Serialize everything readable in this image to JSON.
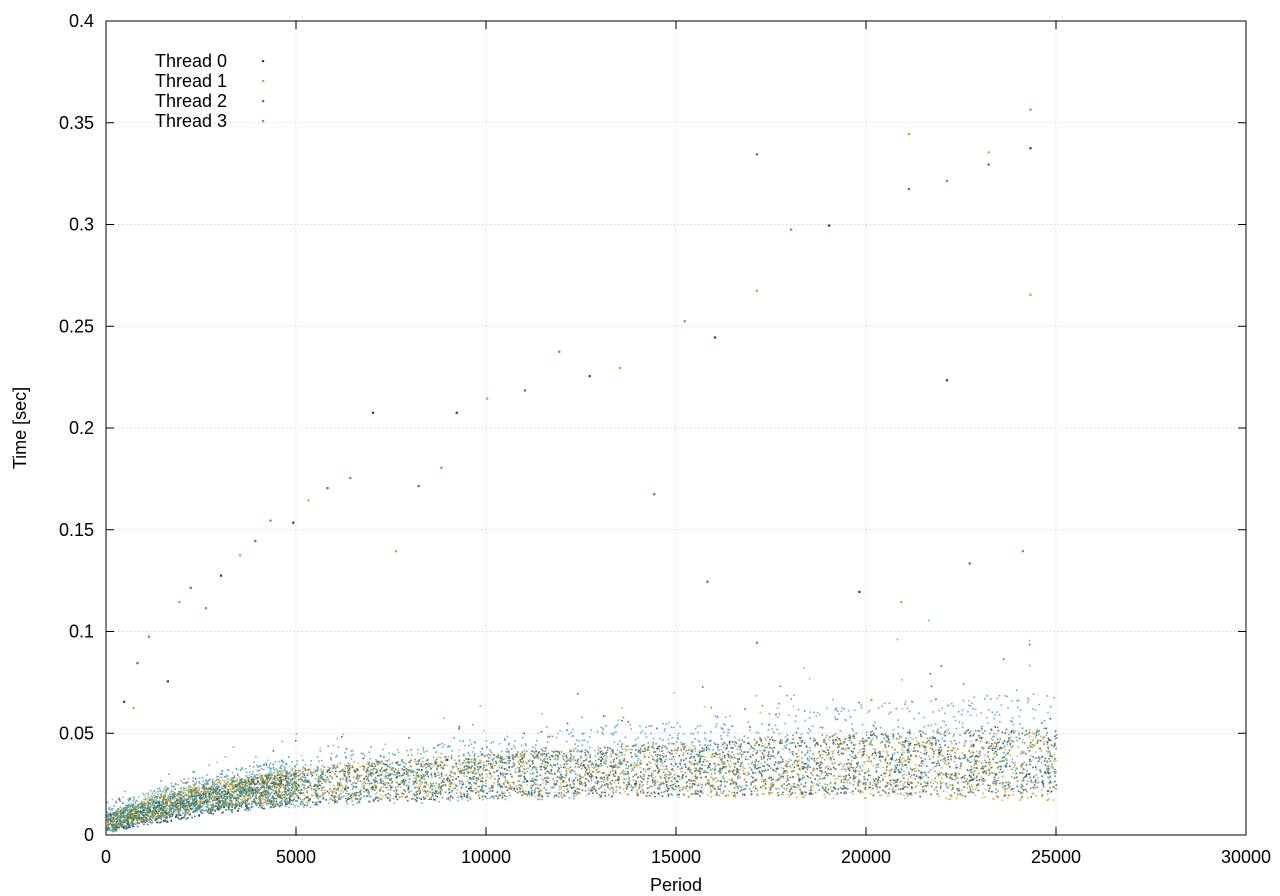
{
  "chart_data": {
    "type": "scatter",
    "title": "",
    "xlabel": "Period",
    "ylabel": "Time [sec]",
    "xlim": [
      0,
      30000
    ],
    "ylim": [
      0,
      0.4
    ],
    "x_ticks": [
      0,
      5000,
      10000,
      15000,
      20000,
      25000,
      30000
    ],
    "x_tick_labels": [
      "0",
      "5000",
      "10000",
      "15000",
      "20000",
      "25000",
      "30000"
    ],
    "y_ticks": [
      0,
      0.05,
      0.1,
      0.15,
      0.2,
      0.25,
      0.3,
      0.35,
      0.4
    ],
    "y_tick_labels": [
      "0",
      "0.05",
      "0.1",
      "0.15",
      "0.2",
      "0.25",
      "0.3",
      "0.35",
      "0.4"
    ],
    "grid": true,
    "legend_position": "top-left",
    "series": [
      {
        "name": "Thread 0",
        "color": "#1a4a45",
        "x": [
          0,
          500,
          1000,
          1500,
          2000,
          2500,
          3000,
          3500,
          4000,
          4500,
          5000,
          6000,
          7000,
          8000,
          9000,
          10000,
          11000,
          12000,
          13000,
          14000,
          15000,
          16000,
          17000,
          18000,
          19000,
          20000,
          21000,
          22000,
          23000,
          24000,
          25000
        ],
        "y": [
          0.006,
          0.008,
          0.01,
          0.012,
          0.014,
          0.016,
          0.018,
          0.019,
          0.021,
          0.022,
          0.023,
          0.025,
          0.026,
          0.027,
          0.028,
          0.029,
          0.03,
          0.031,
          0.031,
          0.032,
          0.032,
          0.033,
          0.033,
          0.034,
          0.034,
          0.035,
          0.035,
          0.035,
          0.036,
          0.036,
          0.036
        ]
      },
      {
        "name": "Thread 1",
        "color": "#d4a032",
        "x": [
          0,
          500,
          1000,
          1500,
          2000,
          2500,
          3000,
          3500,
          4000,
          4500,
          5000,
          6000,
          7000,
          8000,
          9000,
          10000,
          11000,
          12000,
          13000,
          14000,
          15000,
          16000,
          17000,
          18000,
          19000,
          20000,
          21000,
          22000,
          23000,
          24000,
          25000
        ],
        "y": [
          0.007,
          0.01,
          0.013,
          0.016,
          0.018,
          0.02,
          0.021,
          0.022,
          0.023,
          0.024,
          0.025,
          0.026,
          0.027,
          0.028,
          0.029,
          0.03,
          0.03,
          0.031,
          0.031,
          0.032,
          0.032,
          0.032,
          0.033,
          0.033,
          0.033,
          0.033,
          0.034,
          0.034,
          0.034,
          0.034,
          0.034
        ]
      },
      {
        "name": "Thread 2",
        "color": "#5a7a3a",
        "x": [
          0,
          500,
          1000,
          1500,
          2000,
          2500,
          3000,
          3500,
          4000,
          4500,
          5000,
          6000,
          7000,
          8000,
          9000,
          10000,
          11000,
          12000,
          13000,
          14000,
          15000,
          16000,
          17000,
          18000,
          19000,
          20000,
          21000,
          22000,
          23000,
          24000,
          25000
        ],
        "y": [
          0.006,
          0.009,
          0.012,
          0.014,
          0.016,
          0.018,
          0.019,
          0.021,
          0.022,
          0.023,
          0.024,
          0.026,
          0.027,
          0.028,
          0.029,
          0.03,
          0.031,
          0.031,
          0.032,
          0.033,
          0.033,
          0.034,
          0.034,
          0.035,
          0.035,
          0.036,
          0.036,
          0.036,
          0.037,
          0.037,
          0.037
        ]
      },
      {
        "name": "Thread 3",
        "color": "#3aa0c8",
        "x": [
          0,
          500,
          1000,
          1500,
          2000,
          2500,
          3000,
          3500,
          4000,
          4500,
          5000,
          6000,
          7000,
          8000,
          9000,
          10000,
          11000,
          12000,
          13000,
          14000,
          15000,
          16000,
          17000,
          18000,
          19000,
          20000,
          21000,
          22000,
          23000,
          24000,
          25000
        ],
        "y": [
          0.007,
          0.011,
          0.014,
          0.017,
          0.019,
          0.021,
          0.022,
          0.023,
          0.024,
          0.025,
          0.026,
          0.028,
          0.029,
          0.03,
          0.031,
          0.033,
          0.034,
          0.035,
          0.036,
          0.037,
          0.038,
          0.039,
          0.04,
          0.041,
          0.042,
          0.043,
          0.044,
          0.044,
          0.045,
          0.045,
          0.046
        ]
      }
    ],
    "outliers": [
      {
        "x": 450,
        "y": 0.066
      },
      {
        "x": 700,
        "y": 0.063
      },
      {
        "x": 800,
        "y": 0.085
      },
      {
        "x": 1100,
        "y": 0.098
      },
      {
        "x": 1600,
        "y": 0.076
      },
      {
        "x": 1900,
        "y": 0.115
      },
      {
        "x": 2200,
        "y": 0.122
      },
      {
        "x": 2600,
        "y": 0.112
      },
      {
        "x": 3000,
        "y": 0.128
      },
      {
        "x": 3500,
        "y": 0.138
      },
      {
        "x": 3900,
        "y": 0.145
      },
      {
        "x": 4300,
        "y": 0.155
      },
      {
        "x": 4900,
        "y": 0.154
      },
      {
        "x": 5300,
        "y": 0.165
      },
      {
        "x": 5800,
        "y": 0.171
      },
      {
        "x": 6400,
        "y": 0.176
      },
      {
        "x": 7000,
        "y": 0.208
      },
      {
        "x": 7600,
        "y": 0.14
      },
      {
        "x": 8200,
        "y": 0.172
      },
      {
        "x": 8800,
        "y": 0.181
      },
      {
        "x": 9200,
        "y": 0.208
      },
      {
        "x": 10000,
        "y": 0.215
      },
      {
        "x": 11000,
        "y": 0.219
      },
      {
        "x": 11900,
        "y": 0.238
      },
      {
        "x": 12700,
        "y": 0.226
      },
      {
        "x": 13500,
        "y": 0.23
      },
      {
        "x": 14400,
        "y": 0.168
      },
      {
        "x": 15200,
        "y": 0.253
      },
      {
        "x": 16000,
        "y": 0.245
      },
      {
        "x": 17100,
        "y": 0.268
      },
      {
        "x": 17100,
        "y": 0.335
      },
      {
        "x": 18000,
        "y": 0.298
      },
      {
        "x": 19000,
        "y": 0.3
      },
      {
        "x": 21100,
        "y": 0.345
      },
      {
        "x": 21100,
        "y": 0.318
      },
      {
        "x": 22100,
        "y": 0.322
      },
      {
        "x": 22100,
        "y": 0.224
      },
      {
        "x": 23200,
        "y": 0.336
      },
      {
        "x": 23200,
        "y": 0.33
      },
      {
        "x": 24300,
        "y": 0.357
      },
      {
        "x": 24300,
        "y": 0.338
      },
      {
        "x": 24300,
        "y": 0.266
      },
      {
        "x": 15800,
        "y": 0.125
      },
      {
        "x": 17100,
        "y": 0.095
      },
      {
        "x": 19800,
        "y": 0.12
      },
      {
        "x": 20900,
        "y": 0.115
      },
      {
        "x": 22700,
        "y": 0.134
      },
      {
        "x": 24100,
        "y": 0.14
      }
    ]
  }
}
